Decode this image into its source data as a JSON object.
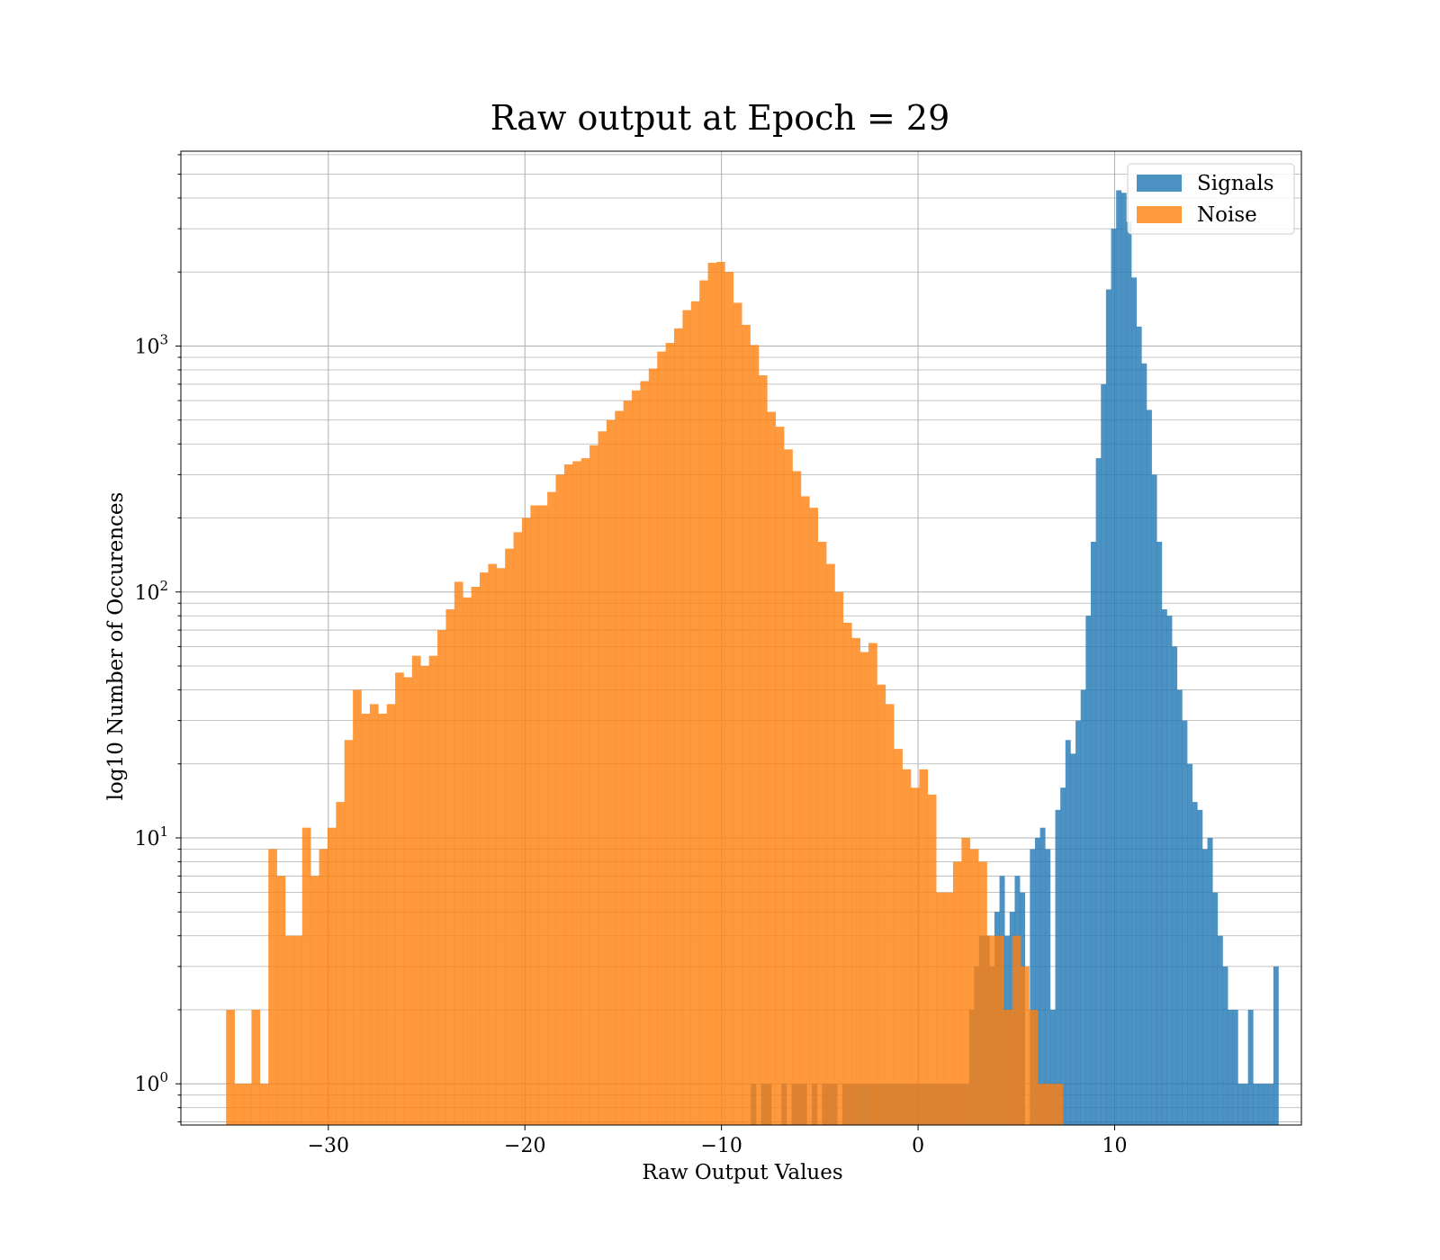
{
  "chart_data": {
    "type": "histogram",
    "title": "Raw output at Epoch = 29",
    "xlabel": "Raw Output Values",
    "ylabel": "log10 Number of Occurences",
    "x_range": [
      -37.5,
      19.5
    ],
    "y_range": [
      0.68,
      6200
    ],
    "y_scale": "log",
    "grid": true,
    "legend_position": "top-right",
    "x_ticks": [
      {
        "value": -30,
        "label": "−30"
      },
      {
        "value": -20,
        "label": "−20"
      },
      {
        "value": -10,
        "label": "−10"
      },
      {
        "value": 0,
        "label": "0"
      },
      {
        "value": 10,
        "label": "10"
      }
    ],
    "y_ticks": [
      {
        "value": 1,
        "base": "10",
        "exp": "0"
      },
      {
        "value": 10,
        "base": "10",
        "exp": "1"
      },
      {
        "value": 100,
        "base": "10",
        "exp": "2"
      },
      {
        "value": 1000,
        "base": "10",
        "exp": "3"
      }
    ],
    "series": [
      {
        "name": "Signals",
        "color": "#1f77b4",
        "opacity": 0.8,
        "bin_start": -8.5,
        "bin_width": 0.258,
        "counts": [
          1,
          0,
          1,
          1,
          0,
          0,
          1,
          0,
          1,
          1,
          1,
          0,
          1,
          0,
          1,
          1,
          1,
          0,
          1,
          1,
          1,
          1,
          1,
          1,
          1,
          1,
          1,
          1,
          1,
          1,
          1,
          1,
          1,
          1,
          1,
          1,
          1,
          1,
          1,
          1,
          1,
          1,
          1,
          2,
          3,
          4,
          4,
          3,
          5,
          7,
          4,
          5,
          7,
          6,
          0,
          9,
          10,
          11,
          9,
          2,
          13,
          16,
          25,
          22,
          30,
          40,
          80,
          160,
          350,
          700,
          1700,
          3000,
          4300,
          4200,
          3200,
          1900,
          1200,
          850,
          550,
          300,
          160,
          85,
          80,
          60,
          40,
          30,
          20,
          14,
          13,
          9,
          10,
          6,
          4,
          3,
          2,
          2,
          1,
          1,
          2,
          1,
          1,
          1,
          1,
          3
        ]
      },
      {
        "name": "Noise",
        "color": "#ff7f0e",
        "opacity": 0.8,
        "bin_start": -35.2,
        "bin_width": 0.43,
        "counts": [
          2,
          1,
          1,
          2,
          1,
          9,
          7,
          4,
          4,
          11,
          7,
          9,
          11,
          14,
          25,
          40,
          32,
          35,
          32,
          35,
          47,
          45,
          55,
          50,
          55,
          70,
          85,
          110,
          95,
          105,
          120,
          130,
          125,
          150,
          175,
          200,
          225,
          225,
          255,
          300,
          330,
          340,
          350,
          395,
          450,
          500,
          545,
          600,
          660,
          720,
          810,
          950,
          1030,
          1180,
          1400,
          1520,
          1850,
          2180,
          2200,
          2000,
          1500,
          1220,
          1010,
          760,
          540,
          470,
          380,
          310,
          245,
          220,
          160,
          130,
          100,
          75,
          65,
          57,
          62,
          42,
          35,
          23,
          19,
          16,
          19,
          15,
          6,
          6,
          8,
          10,
          9,
          8,
          4,
          4,
          2,
          4,
          3,
          2,
          1,
          1,
          1
        ]
      }
    ]
  }
}
